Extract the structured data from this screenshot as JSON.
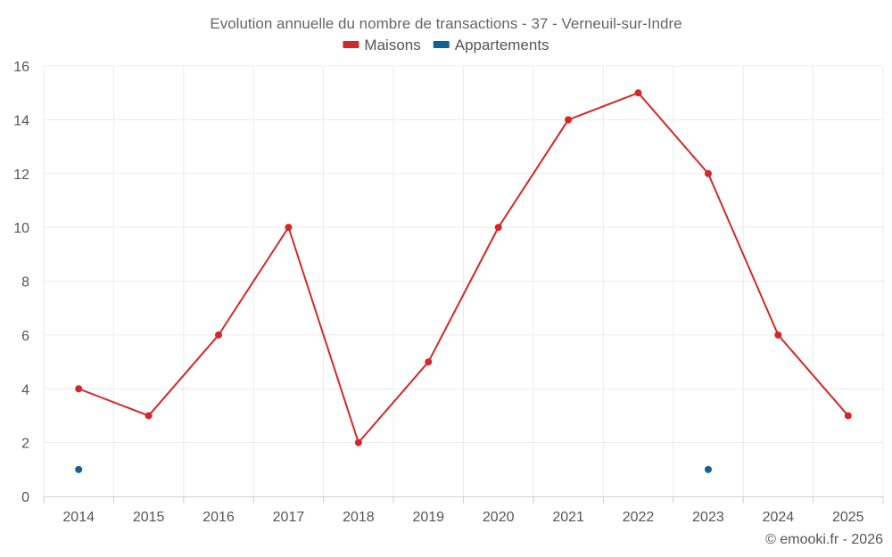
{
  "chart_data": {
    "type": "line",
    "title": "Evolution annuelle du nombre de transactions - 37 - Verneuil-sur-Indre",
    "categories": [
      "2014",
      "2015",
      "2016",
      "2017",
      "2018",
      "2019",
      "2020",
      "2021",
      "2022",
      "2023",
      "2024",
      "2025"
    ],
    "series": [
      {
        "name": "Maisons",
        "color": "#d62728",
        "values": [
          4,
          3,
          6,
          10,
          2,
          5,
          10,
          14,
          15,
          12,
          6,
          3
        ]
      },
      {
        "name": "Appartements",
        "color": "#0b6396",
        "values": [
          1,
          null,
          null,
          null,
          null,
          null,
          null,
          null,
          null,
          1,
          null,
          null
        ]
      }
    ],
    "xlabel": "",
    "ylabel": "",
    "ylim": [
      0,
      16
    ],
    "yticks": [
      0,
      2,
      4,
      6,
      8,
      10,
      12,
      14,
      16
    ],
    "grid": true,
    "legend_position": "top-center"
  },
  "credit": "© emooki.fr - 2026"
}
